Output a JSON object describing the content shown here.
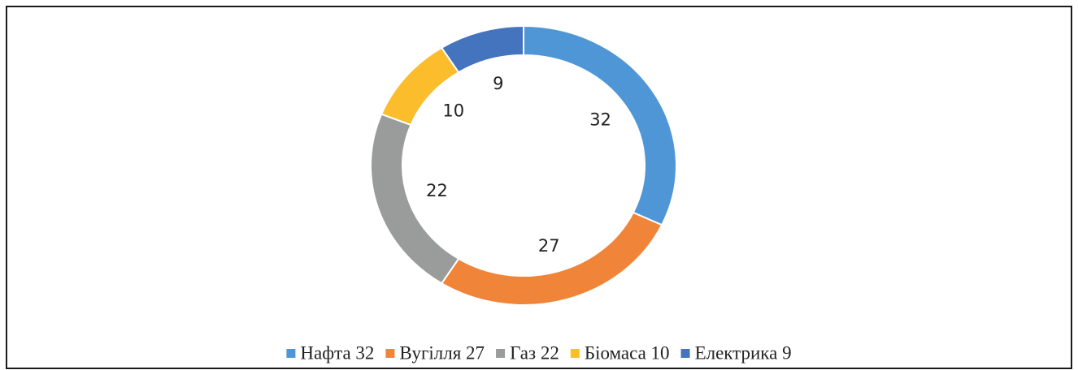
{
  "chart_data": {
    "type": "donut",
    "categories": [
      "Нафта 32",
      "Вугілля 27",
      "Газ 22",
      "Біомаса 10",
      "Електрика 9"
    ],
    "values": [
      32,
      27,
      22,
      10,
      9
    ],
    "colors": [
      "#4f96d6",
      "#f08439",
      "#9a9c9c",
      "#fbbd2b",
      "#4374bd"
    ],
    "legend": "bottom"
  }
}
